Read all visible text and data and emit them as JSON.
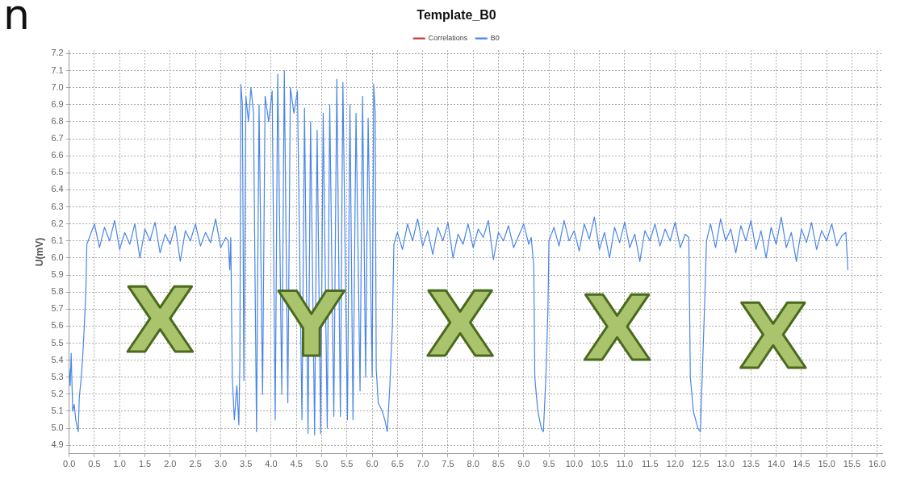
{
  "chart_data": {
    "type": "line",
    "title": "Template_B0",
    "ylabel": "U(mV)",
    "annotations": [
      "n",
      "X",
      "Y",
      "X",
      "X",
      "X"
    ],
    "xlim": [
      0,
      16.1
    ],
    "ylim": [
      4.85,
      7.22
    ],
    "xticks": [
      {
        "value": 0,
        "label": "0.0"
      },
      0.5,
      {
        "value": 1,
        "label": "1.0"
      },
      1.5,
      {
        "value": 2,
        "label": "2.0"
      },
      2.5,
      {
        "value": 3,
        "label": "3.0"
      },
      3.5,
      {
        "value": 4,
        "label": "4.0"
      },
      4.5,
      {
        "value": 5,
        "label": "5.0"
      },
      5.5,
      {
        "value": 6,
        "label": "6.0"
      },
      6.5,
      {
        "value": 7,
        "label": "7.0"
      },
      7.5,
      {
        "value": 8,
        "label": "8.0"
      },
      8.5,
      {
        "value": 9,
        "label": "9.0"
      },
      9.5,
      {
        "value": 10,
        "label": "10.0"
      },
      10.5,
      {
        "value": 11,
        "label": "11.0"
      },
      11.5,
      {
        "value": 12,
        "label": "12.0"
      },
      12.5,
      {
        "value": 13,
        "label": "13.0"
      },
      13.5,
      {
        "value": 14,
        "label": "14.0"
      },
      14.5,
      {
        "value": 15,
        "label": "15.0"
      },
      15.5,
      {
        "value": 16,
        "label": "16.0"
      }
    ],
    "yticks": [
      4.9,
      {
        "value": 5,
        "label": "5.0"
      },
      5.1,
      5.2,
      5.3,
      5.4,
      5.5,
      5.6,
      5.7,
      5.8,
      5.9,
      {
        "value": 6,
        "label": "6.0"
      },
      6.1,
      6.2,
      6.3,
      6.4,
      6.5,
      6.6,
      6.7,
      6.8,
      6.9,
      {
        "value": 7,
        "label": "7.0"
      },
      7.1,
      7.2
    ],
    "grid": true,
    "legend": "top",
    "marker": "none",
    "line_style": "solid",
    "series": [
      {
        "name": "Correlations",
        "color": "#c04040"
      },
      {
        "name": "B0",
        "color": "#4a86e8",
        "x": [
          0,
          0.02,
          0.04,
          0.07,
          0.1,
          0.13,
          0.18,
          0.2,
          0.24,
          0.27,
          0.3,
          0.33,
          0.35,
          0.4,
          0.5,
          0.6,
          0.7,
          0.8,
          0.9,
          1.0,
          1.1,
          1.2,
          1.3,
          1.4,
          1.5,
          1.6,
          1.7,
          1.8,
          1.9,
          2.0,
          2.1,
          2.2,
          2.3,
          2.4,
          2.5,
          2.6,
          2.7,
          2.8,
          2.9,
          3.0,
          3.1,
          3.15,
          3.18,
          3.2,
          3.23,
          3.27,
          3.32,
          3.36,
          3.38,
          3.4,
          3.43,
          3.46,
          3.5,
          3.55,
          3.6,
          3.65,
          3.71,
          3.76,
          3.83,
          3.88,
          3.95,
          4.02,
          4.08,
          4.13,
          4.21,
          4.26,
          4.33,
          4.38,
          4.45,
          4.52,
          4.61,
          4.66,
          4.73,
          4.78,
          4.86,
          4.91,
          4.98,
          5.03,
          5.11,
          5.16,
          5.24,
          5.3,
          5.37,
          5.42,
          5.51,
          5.56,
          5.62,
          5.68,
          5.76,
          5.81,
          5.87,
          5.92,
          6.0,
          6.03,
          6.06,
          6.08,
          6.12,
          6.2,
          6.25,
          6.3,
          6.35,
          6.4,
          6.43,
          6.5,
          6.6,
          6.7,
          6.8,
          6.9,
          7.0,
          7.1,
          7.2,
          7.3,
          7.4,
          7.5,
          7.6,
          7.7,
          7.8,
          7.9,
          8.0,
          8.1,
          8.2,
          8.3,
          8.4,
          8.5,
          8.6,
          8.7,
          8.8,
          8.9,
          9.0,
          9.1,
          9.15,
          9.2,
          9.22,
          9.28,
          9.35,
          9.39,
          9.44,
          9.48,
          9.5,
          9.6,
          9.7,
          9.8,
          9.9,
          10.0,
          10.1,
          10.2,
          10.3,
          10.4,
          10.5,
          10.6,
          10.7,
          10.8,
          10.9,
          11.0,
          11.1,
          11.2,
          11.3,
          11.4,
          11.5,
          11.6,
          11.7,
          11.8,
          11.9,
          12.0,
          12.1,
          12.2,
          12.27,
          12.3,
          12.36,
          12.45,
          12.5,
          12.54,
          12.58,
          12.62,
          12.7,
          12.8,
          12.9,
          13.0,
          13.1,
          13.2,
          13.3,
          13.4,
          13.5,
          13.6,
          13.7,
          13.8,
          13.9,
          14.0,
          14.1,
          14.2,
          14.3,
          14.4,
          14.5,
          14.6,
          14.7,
          14.8,
          14.9,
          15.0,
          15.1,
          15.2,
          15.3,
          15.38,
          15.42
        ],
        "values": [
          5.35,
          5.25,
          5.44,
          5.1,
          5.14,
          5.05,
          4.98,
          5.18,
          5.3,
          5.43,
          5.6,
          5.8,
          6.08,
          6.12,
          6.2,
          6.06,
          6.18,
          6.1,
          6.22,
          6.05,
          6.15,
          6.08,
          6.2,
          6.0,
          6.17,
          6.1,
          6.21,
          6.03,
          6.14,
          6.08,
          6.19,
          5.98,
          6.16,
          6.1,
          6.2,
          6.07,
          6.15,
          6.09,
          6.23,
          6.06,
          6.12,
          6.1,
          5.93,
          6.12,
          5.3,
          5.05,
          5.25,
          5.02,
          5.4,
          7.02,
          6.9,
          5.28,
          6.95,
          6.8,
          7.0,
          6.85,
          4.98,
          6.9,
          5.2,
          6.95,
          6.8,
          6.98,
          5.05,
          7.08,
          5.2,
          7.1,
          5.15,
          7.0,
          6.85,
          6.98,
          5.05,
          6.88,
          4.97,
          6.8,
          4.96,
          6.75,
          4.97,
          6.85,
          5.0,
          6.9,
          5.07,
          7.05,
          5.07,
          7.03,
          5.05,
          6.9,
          5.05,
          6.85,
          5.22,
          6.95,
          5.3,
          6.82,
          5.3,
          7.02,
          6.85,
          5.35,
          5.15,
          5.1,
          5.05,
          4.98,
          5.25,
          5.6,
          6.08,
          6.15,
          6.05,
          6.2,
          6.1,
          6.23,
          6.07,
          6.16,
          6.02,
          6.18,
          6.1,
          6.21,
          6.0,
          6.14,
          6.08,
          6.2,
          6.06,
          6.17,
          6.12,
          6.22,
          5.99,
          6.15,
          6.1,
          6.19,
          6.06,
          6.13,
          6.2,
          6.08,
          6.12,
          5.95,
          5.3,
          5.1,
          5.0,
          4.98,
          5.3,
          5.7,
          6.1,
          6.18,
          6.07,
          6.22,
          6.1,
          6.16,
          6.04,
          6.2,
          6.11,
          6.24,
          6.05,
          6.15,
          6.0,
          6.18,
          6.09,
          6.21,
          6.06,
          6.14,
          5.98,
          6.16,
          6.1,
          6.2,
          6.07,
          6.17,
          6.1,
          6.21,
          6.06,
          6.14,
          6.12,
          5.3,
          5.1,
          5.0,
          4.98,
          5.35,
          5.7,
          6.1,
          6.2,
          6.06,
          6.23,
          6.1,
          6.17,
          6.03,
          6.19,
          6.1,
          6.22,
          6.05,
          6.16,
          6.0,
          6.18,
          6.08,
          6.24,
          6.06,
          6.15,
          5.98,
          6.17,
          6.09,
          6.21,
          6.05,
          6.16,
          6.1,
          6.2,
          6.07,
          6.13,
          6.15,
          5.93
        ]
      }
    ]
  }
}
